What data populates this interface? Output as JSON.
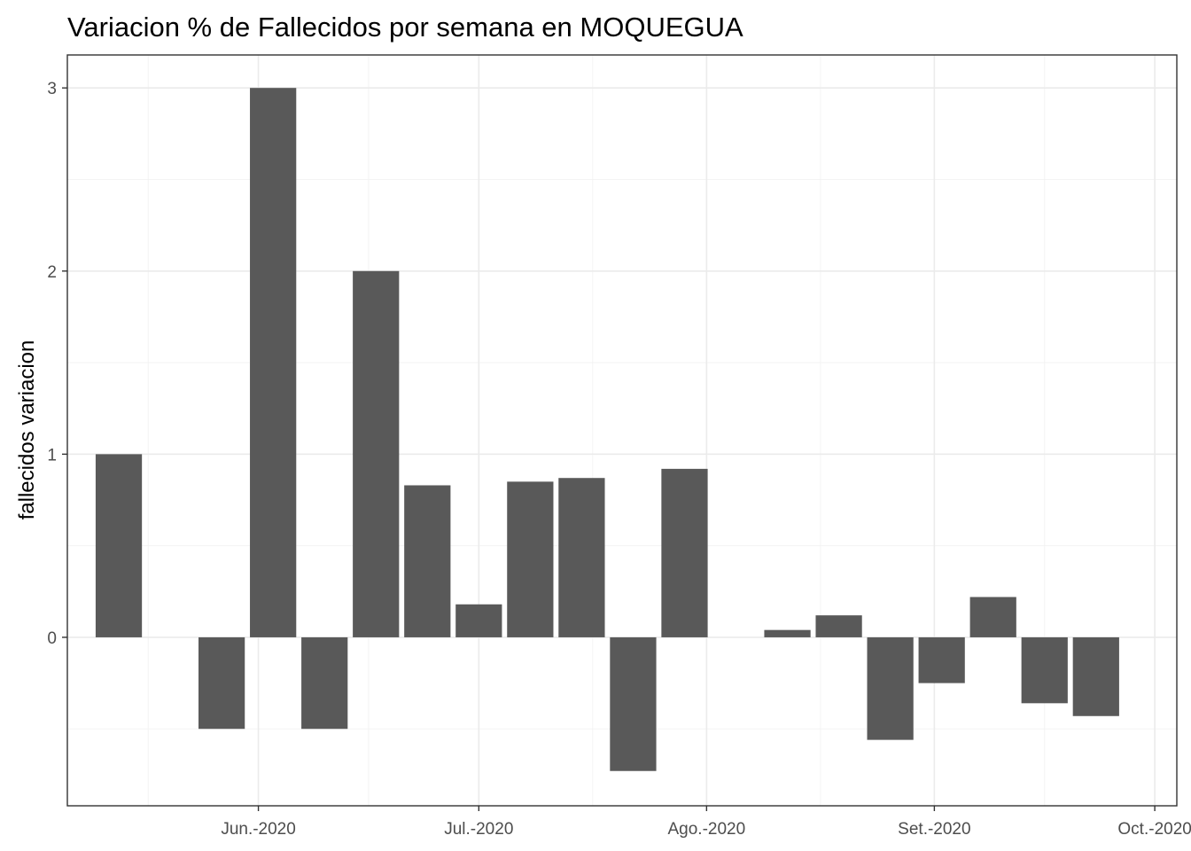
{
  "chart_data": {
    "type": "bar",
    "title": "Variacion % de Fallecidos por semana en MOQUEGUA",
    "xlabel": "",
    "ylabel": "fallecidos variacion",
    "x_axis_type": "date",
    "x_ticks": [
      {
        "date": "2020-06-01",
        "label": "Jun.-2020"
      },
      {
        "date": "2020-07-01",
        "label": "Jul.-2020"
      },
      {
        "date": "2020-08-01",
        "label": "Ago.-2020"
      },
      {
        "date": "2020-09-01",
        "label": "Set.-2020"
      },
      {
        "date": "2020-10-01",
        "label": "Oct.-2020"
      }
    ],
    "y_ticks": [
      0,
      1,
      2,
      3
    ],
    "xlim": [
      "2020-05-06",
      "2020-10-04"
    ],
    "ylim": [
      -0.92,
      3.18
    ],
    "grid": true,
    "bar_color": "#595959",
    "x": [
      "2020-05-13",
      "2020-05-20",
      "2020-05-27",
      "2020-06-03",
      "2020-06-10",
      "2020-06-17",
      "2020-06-24",
      "2020-07-01",
      "2020-07-08",
      "2020-07-15",
      "2020-07-22",
      "2020-07-29",
      "2020-08-05",
      "2020-08-12",
      "2020-08-19",
      "2020-08-26",
      "2020-09-02",
      "2020-09-09",
      "2020-09-16",
      "2020-09-23"
    ],
    "values": [
      1.0,
      0.0,
      -0.5,
      3.0,
      -0.5,
      2.0,
      0.83,
      0.18,
      0.85,
      0.87,
      -0.73,
      0.92,
      0.0,
      0.04,
      0.12,
      -0.56,
      -0.25,
      0.22,
      -0.36,
      -0.43
    ]
  }
}
